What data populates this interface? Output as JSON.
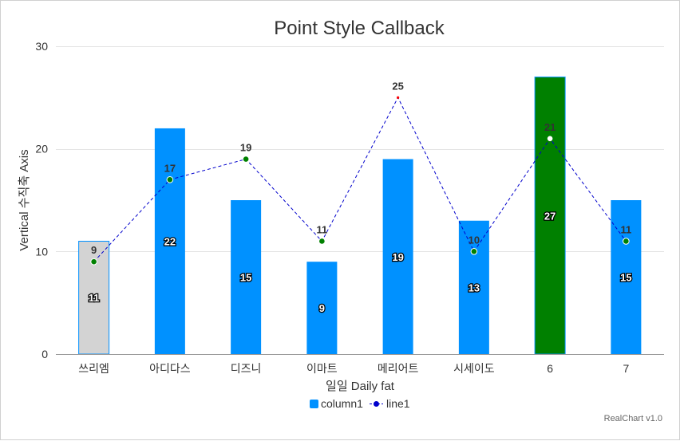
{
  "chart_data": {
    "type": "bar",
    "title": "Point Style Callback",
    "xlabel": "일일 Daily fat",
    "ylabel": "Vertical 수직축 Axis",
    "ylim": [
      0,
      30
    ],
    "yticks": [
      "0",
      "10",
      "20",
      "30"
    ],
    "categories": [
      "쓰리엠",
      "아디다스",
      "디즈니",
      "이마트",
      "메리어트",
      "시세이도",
      "6",
      "7"
    ],
    "series": [
      {
        "name": "column1",
        "type": "bar",
        "color": "#0091ff",
        "values": [
          11,
          22,
          15,
          9,
          19,
          13,
          27,
          15
        ],
        "point_colors": [
          "#d3d3d3",
          "#0091ff",
          "#0091ff",
          "#0091ff",
          "#0091ff",
          "#0091ff",
          "#008000",
          "#0091ff"
        ]
      },
      {
        "name": "line1",
        "type": "line",
        "color": "#0000cc",
        "line_style": "dashed",
        "values": [
          9,
          17,
          19,
          11,
          25,
          10,
          21,
          11
        ],
        "point_colors": [
          "#008000",
          "#008000",
          "#008000",
          "#008000",
          "#ff0000",
          "#008000",
          "#ffffff",
          "#008000"
        ]
      }
    ],
    "grid": true,
    "legend_position": "bottom",
    "credit": "RealChart v1.0"
  }
}
